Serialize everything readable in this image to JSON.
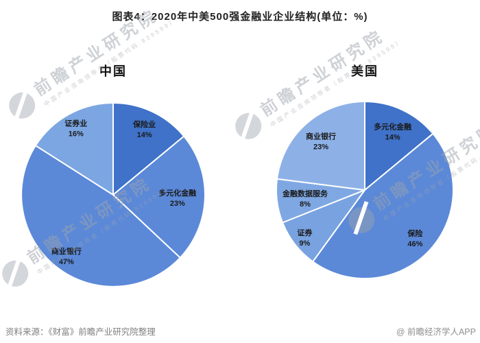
{
  "page": {
    "title": "图表4：2020年中美500强金融业企业结构(单位：%)",
    "footer_left": "资料来源：《财富》前瞻产业研究院整理",
    "footer_right": "@ 前瞻经济学人APP"
  },
  "watermark": {
    "main": "前瞻产业研究院",
    "sub": "中国产业咨询领导者（股票代码:839599）",
    "logo": "qianzhan-logo-icon",
    "color": "#9ea4ac"
  },
  "chart_data": [
    {
      "type": "pie",
      "title": "中国",
      "unit": "%",
      "start_angle_deg": 0,
      "direction": "clockwise",
      "divider_color": "#ffffff",
      "slices": [
        {
          "label": "保险业",
          "value": 14,
          "color": "#3f72c8",
          "label_r": 0.8
        },
        {
          "label": "多元化金融",
          "value": 23,
          "color": "#5b89d8",
          "label_r": 0.7
        },
        {
          "label": "商业银行",
          "value": 47,
          "color": "#5b89d8",
          "label_r": 0.83
        },
        {
          "label": "证券业",
          "value": 16,
          "color": "#7ca6e2",
          "label_r": 0.84
        }
      ]
    },
    {
      "type": "pie",
      "title": "美国",
      "unit": "%",
      "start_angle_deg": 0,
      "direction": "clockwise",
      "divider_color": "#ffffff",
      "slices": [
        {
          "label": "多元化金融",
          "value": 14,
          "color": "#3f72c8",
          "label_r": 0.74
        },
        {
          "label": "保险",
          "value": 46,
          "color": "#5b89d8",
          "label_r": 0.78
        },
        {
          "label": "证券",
          "value": 9,
          "color": "#79a2e0",
          "label_r": 0.86
        },
        {
          "label": "金融数据服务",
          "value": 8,
          "color": "#7fa8e3",
          "label_r": 0.68
        },
        {
          "label": "商业银行",
          "value": 23,
          "color": "#8db1e7",
          "label_r": 0.75
        }
      ]
    }
  ]
}
